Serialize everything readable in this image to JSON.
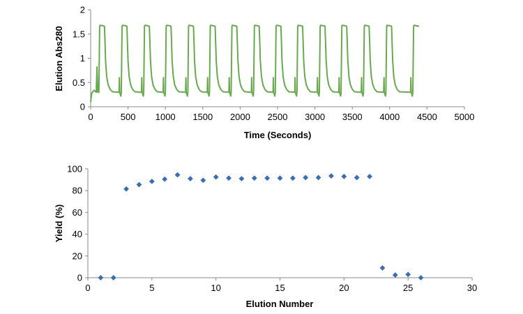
{
  "chart_data": [
    {
      "type": "line",
      "title": "",
      "xlabel": "Time (Seconds)",
      "ylabel": "Elution Abs280",
      "xlim": [
        0,
        5000
      ],
      "ylim": [
        0,
        2
      ],
      "xticks": [
        "0",
        "500",
        "1000",
        "1500",
        "2000",
        "2500",
        "3000",
        "3500",
        "4000",
        "4500",
        "5000"
      ],
      "yticks": [
        "0",
        "0.5",
        "1",
        "1.5",
        "2"
      ],
      "grid": false,
      "color": "#6aa84f",
      "cycle_starts": [
        110,
        410,
        710,
        1000,
        1300,
        1590,
        1880,
        2180,
        2470,
        2760,
        3060,
        3350,
        3650,
        3950,
        4310
      ],
      "peak_value": 1.68,
      "trough_value": 0.25,
      "x_end": 4330
    },
    {
      "type": "scatter",
      "title": "",
      "xlabel": "Elution Number",
      "ylabel": "Yield (%)",
      "xlim": [
        0,
        30
      ],
      "ylim": [
        0,
        100
      ],
      "xticks": [
        "0",
        "5",
        "10",
        "15",
        "20",
        "25",
        "30"
      ],
      "yticks": [
        "0",
        "20",
        "40",
        "60",
        "80",
        "100"
      ],
      "grid": false,
      "color": "#3a6fb5",
      "x": [
        1,
        2,
        3,
        4,
        5,
        6,
        7,
        8,
        9,
        10,
        11,
        12,
        13,
        14,
        15,
        16,
        17,
        18,
        19,
        20,
        21,
        22,
        23,
        24,
        25,
        26
      ],
      "y": [
        0,
        0,
        81.5,
        85.5,
        88.5,
        90.5,
        94.5,
        91,
        89.5,
        92.5,
        91.5,
        91,
        91.5,
        91.5,
        91.5,
        91.5,
        92,
        92,
        93.5,
        93,
        92,
        93,
        9,
        2.5,
        3,
        0
      ]
    }
  ]
}
